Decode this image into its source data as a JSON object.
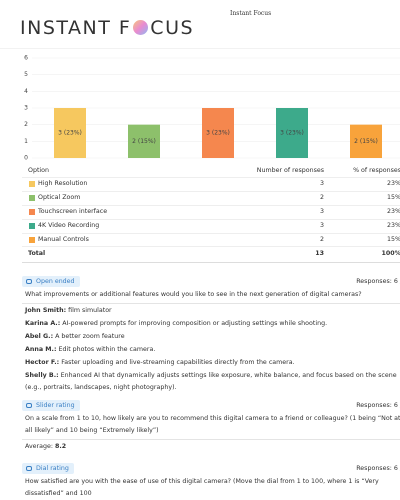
{
  "header": {
    "small_title": "Instant Focus",
    "logo_left": "INSTANT F",
    "logo_right": "CUS"
  },
  "chart_data": {
    "type": "bar",
    "values": [
      3,
      2,
      3,
      3,
      2
    ],
    "value_labels": [
      "3 (23%)",
      "2 (15%)",
      "3 (23%)",
      "3 (23%)",
      "2 (15%)"
    ],
    "colors": [
      "#f6c85f",
      "#8dc06b",
      "#f5874e",
      "#3daa8b",
      "#f8a33b"
    ],
    "ylim": [
      0,
      6
    ],
    "yticks": [
      0,
      1,
      2,
      3,
      4,
      5,
      6
    ],
    "grid": true
  },
  "table": {
    "header": [
      "Option",
      "Number of responses",
      "% of responses"
    ],
    "rows": [
      [
        "High Resolution",
        "3",
        "23%"
      ],
      [
        "Optical Zoom",
        "2",
        "15%"
      ],
      [
        "Touchscreen interface",
        "3",
        "23%"
      ],
      [
        "4K Video Recording",
        "3",
        "23%"
      ],
      [
        "Manual Controls",
        "2",
        "15%"
      ]
    ],
    "total": [
      "Total",
      "13",
      "100%"
    ]
  },
  "sections": [
    {
      "badge": "Open ended",
      "responses": "Responses: 6 /",
      "question": "What improvements or additional features would you like to see in the next generation of digital cameras?",
      "answers": [
        {
          "name": "John Smith:",
          "text": "film simulator"
        },
        {
          "name": "Karina A.:",
          "text": "AI-powered prompts for improving composition or adjusting settings while shooting."
        },
        {
          "name": "Abel G.:",
          "text": "A better zoom feature"
        },
        {
          "name": "Anna M.:",
          "text": "Edit photos within the camera."
        },
        {
          "name": "Hector F.:",
          "text": "Faster uploading and live-streaming capabilities directly from the camera."
        },
        {
          "name": "Shelly B.:",
          "text": "Enhanced AI that dynamically adjusts settings like exposure, white balance, and focus based on the scene (e.g., portraits, landscapes, night photography)."
        }
      ]
    },
    {
      "badge": "Slider rating",
      "responses": "Responses: 6 /",
      "question": "On a scale from 1 to 10, how likely are you to recommend this digital camera to a friend or colleague? (1 being “Not at all likely” and 10 being “Extremely likely”)",
      "average_label": "Average:",
      "average": "8.2"
    },
    {
      "badge": "Dial rating",
      "responses": "Responses: 6 /",
      "question": "How satisfied are you with the ease of use of this digital camera? (Move the dial from 1 to 100, where 1 is “Very dissatisfied” and 100"
    }
  ]
}
